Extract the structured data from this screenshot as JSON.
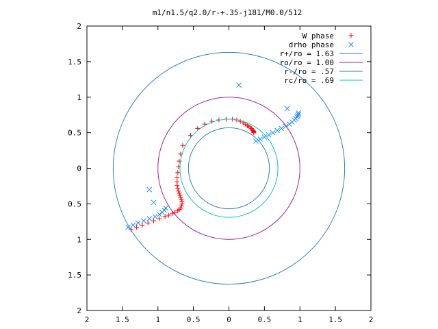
{
  "chart_data": {
    "type": "scatter",
    "title": "m1/n1.5/q2.0/r-+.35-j181/M0.0/512",
    "xlabel": "",
    "ylabel": "",
    "xlim": [
      -2,
      2
    ],
    "ylim": [
      -2,
      2
    ],
    "xticks": [
      -2,
      -1.5,
      -1,
      -0.5,
      0,
      0.5,
      1,
      1.5,
      2
    ],
    "yticks": [
      -2,
      -1.5,
      -1,
      -0.5,
      0,
      0.5,
      1,
      1.5,
      2
    ],
    "xtick_labels": [
      "2",
      "1.5",
      "1",
      "0.5",
      "0",
      "0.5",
      "1",
      "1.5",
      "2"
    ],
    "ytick_labels": [
      "2",
      "1.5",
      "1",
      "0.5",
      "0",
      "0.5",
      "1",
      "1.5",
      "2"
    ],
    "grid": false,
    "legend_position": "top-right",
    "series": [
      {
        "name": "W phase",
        "kind": "points",
        "marker": "plus",
        "color": "#ff0000",
        "x": [
          -1.38,
          -1.3,
          -1.22,
          -1.14,
          -1.06,
          -0.98,
          -0.9,
          -0.85,
          -0.8,
          -0.76,
          -0.72,
          -0.7,
          -0.68,
          -0.67,
          -0.66,
          -0.66,
          -0.67,
          -0.68,
          -0.69,
          -0.7,
          -0.71,
          -0.72,
          -0.73,
          -0.73,
          -0.73,
          -0.72,
          -0.71,
          -0.7,
          -0.68,
          -0.65,
          -0.54,
          -0.44,
          -0.34,
          -0.24,
          -0.14,
          -0.04,
          0.05,
          0.11,
          0.16,
          0.2,
          0.23,
          0.26,
          0.28,
          0.3,
          0.32,
          0.33,
          0.34,
          0.35,
          0.35,
          0.35
        ],
        "y": [
          -0.86,
          -0.83,
          -0.8,
          -0.77,
          -0.74,
          -0.71,
          -0.68,
          -0.66,
          -0.64,
          -0.62,
          -0.6,
          -0.58,
          -0.56,
          -0.53,
          -0.5,
          -0.47,
          -0.44,
          -0.41,
          -0.38,
          -0.35,
          -0.32,
          -0.28,
          -0.24,
          -0.19,
          -0.13,
          -0.06,
          0.02,
          0.1,
          0.2,
          0.32,
          0.46,
          0.56,
          0.62,
          0.66,
          0.68,
          0.69,
          0.69,
          0.68,
          0.66,
          0.64,
          0.62,
          0.6,
          0.59,
          0.57,
          0.56,
          0.54,
          0.53,
          0.52,
          0.51,
          0.5
        ]
      },
      {
        "name": "drho phase",
        "kind": "points",
        "marker": "cross",
        "color": "#1e90ff",
        "x": [
          -1.42,
          -1.35,
          -1.28,
          -1.2,
          -1.12,
          -1.04,
          -0.98,
          -0.94,
          -0.91,
          -0.89,
          -1.12,
          -1.06,
          0.38,
          0.44,
          0.5,
          0.56,
          0.62,
          0.68,
          0.74,
          0.8,
          0.85,
          0.89,
          0.92,
          0.94,
          0.96,
          0.97,
          0.98,
          0.98,
          0.82,
          0.14
        ],
        "y": [
          -0.83,
          -0.8,
          -0.77,
          -0.74,
          -0.71,
          -0.68,
          -0.65,
          -0.62,
          -0.59,
          -0.56,
          -0.3,
          -0.48,
          0.38,
          0.41,
          0.44,
          0.47,
          0.5,
          0.53,
          0.56,
          0.59,
          0.62,
          0.65,
          0.68,
          0.7,
          0.72,
          0.74,
          0.76,
          0.78,
          0.84,
          1.17
        ]
      },
      {
        "name": "r+/ro = 1.63",
        "kind": "circle",
        "radius": 1.63,
        "cx": 0,
        "cy": 0,
        "color": "#2f7fbf"
      },
      {
        "name": "ro/ro = 1.00",
        "kind": "circle",
        "radius": 1.0,
        "cx": 0,
        "cy": 0,
        "color": "#a020a0"
      },
      {
        "name": "r-/ro = .57",
        "kind": "circle",
        "radius": 0.57,
        "cx": 0,
        "cy": 0,
        "color": "#2f7fbf"
      },
      {
        "name": "rc/ro = .69",
        "kind": "circle",
        "radius": 0.69,
        "cx": 0,
        "cy": 0,
        "color": "#00c8c8"
      }
    ]
  }
}
